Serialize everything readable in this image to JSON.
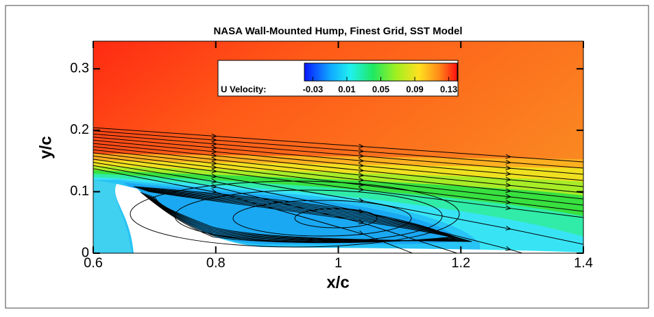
{
  "chart_data": {
    "type": "contour",
    "title": "NASA Wall-Mounted Hump, Finest Grid, SST Model",
    "x_label": "x/c",
    "y_label": "y/c",
    "xlim": [
      0.6,
      1.4
    ],
    "xticks": [
      0.6,
      0.8,
      1,
      1.2,
      1.4
    ],
    "ylim": [
      0,
      0.345
    ],
    "yticks": [
      0,
      0.1,
      0.2,
      0.3
    ],
    "colorbar": {
      "label": "U Velocity:",
      "clim": [
        -0.04,
        0.14
      ],
      "ticks": [
        -0.03,
        0.01,
        0.05,
        0.09,
        0.13
      ]
    }
  }
}
